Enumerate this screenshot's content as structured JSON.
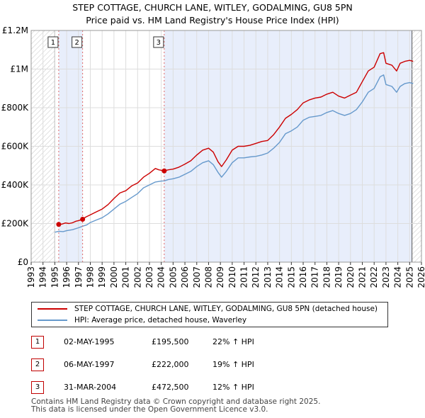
{
  "title_line1": "STEP COTTAGE, CHURCH LANE, WITLEY, GODALMING, GU8 5PN",
  "title_line2": "Price paid vs. HM Land Registry's House Price Index (HPI)",
  "chart_data": {
    "type": "line",
    "x_range": [
      1993,
      2026
    ],
    "ylim": [
      0,
      1200000
    ],
    "y_ticks": [
      {
        "value": 0,
        "label": "£0"
      },
      {
        "value": 200000,
        "label": "£200K"
      },
      {
        "value": 400000,
        "label": "£400K"
      },
      {
        "value": 600000,
        "label": "£600K"
      },
      {
        "value": 800000,
        "label": "£800K"
      },
      {
        "value": 1000000,
        "label": "£1M"
      },
      {
        "value": 1200000,
        "label": "£1.2M"
      }
    ],
    "x_ticks": [
      "1993",
      "1994",
      "1995",
      "1996",
      "1997",
      "1998",
      "1999",
      "2000",
      "2001",
      "2002",
      "2003",
      "2004",
      "2005",
      "2006",
      "2007",
      "2008",
      "2009",
      "2010",
      "2011",
      "2012",
      "2013",
      "2014",
      "2015",
      "2016",
      "2017",
      "2018",
      "2019",
      "2020",
      "2021",
      "2022",
      "2023",
      "2024",
      "2025",
      "2026"
    ],
    "hatch_before": 1995.0,
    "hatch_after": 2025.2,
    "series": [
      {
        "name": "STEP COTTAGE, CHURCH LANE, WITLEY, GODALMING, GU8 5PN (detached house)",
        "color": "#cc0000",
        "points": [
          [
            1995.33,
            195500
          ],
          [
            1995.6,
            197000
          ],
          [
            1995.9,
            203000
          ],
          [
            1996.2,
            200000
          ],
          [
            1996.5,
            204000
          ],
          [
            1996.8,
            212000
          ],
          [
            1997.0,
            215000
          ],
          [
            1997.35,
            222000
          ],
          [
            1997.6,
            233000
          ],
          [
            1998.0,
            245000
          ],
          [
            1998.5,
            260000
          ],
          [
            1999.0,
            275000
          ],
          [
            1999.5,
            298000
          ],
          [
            2000.0,
            330000
          ],
          [
            2000.5,
            358000
          ],
          [
            2001.0,
            370000
          ],
          [
            2001.5,
            395000
          ],
          [
            2002.0,
            410000
          ],
          [
            2002.5,
            440000
          ],
          [
            2003.0,
            460000
          ],
          [
            2003.5,
            485000
          ],
          [
            2003.8,
            478000
          ],
          [
            2004.25,
            472500
          ],
          [
            2004.6,
            478000
          ],
          [
            2005.0,
            482000
          ],
          [
            2005.5,
            492000
          ],
          [
            2006.0,
            508000
          ],
          [
            2006.5,
            525000
          ],
          [
            2007.0,
            555000
          ],
          [
            2007.5,
            580000
          ],
          [
            2008.0,
            590000
          ],
          [
            2008.4,
            570000
          ],
          [
            2008.8,
            520000
          ],
          [
            2009.1,
            495000
          ],
          [
            2009.5,
            530000
          ],
          [
            2010.0,
            580000
          ],
          [
            2010.5,
            600000
          ],
          [
            2011.0,
            600000
          ],
          [
            2011.5,
            605000
          ],
          [
            2012.0,
            615000
          ],
          [
            2012.5,
            625000
          ],
          [
            2013.0,
            630000
          ],
          [
            2013.5,
            660000
          ],
          [
            2014.0,
            700000
          ],
          [
            2014.5,
            745000
          ],
          [
            2015.0,
            765000
          ],
          [
            2015.5,
            790000
          ],
          [
            2016.0,
            825000
          ],
          [
            2016.5,
            840000
          ],
          [
            2017.0,
            850000
          ],
          [
            2017.5,
            855000
          ],
          [
            2018.0,
            870000
          ],
          [
            2018.5,
            880000
          ],
          [
            2019.0,
            860000
          ],
          [
            2019.5,
            850000
          ],
          [
            2020.0,
            865000
          ],
          [
            2020.5,
            880000
          ],
          [
            2021.0,
            935000
          ],
          [
            2021.5,
            990000
          ],
          [
            2022.0,
            1010000
          ],
          [
            2022.5,
            1080000
          ],
          [
            2022.8,
            1085000
          ],
          [
            2023.0,
            1030000
          ],
          [
            2023.5,
            1020000
          ],
          [
            2023.9,
            990000
          ],
          [
            2024.2,
            1030000
          ],
          [
            2024.6,
            1040000
          ],
          [
            2025.0,
            1045000
          ],
          [
            2025.3,
            1040000
          ]
        ]
      },
      {
        "name": "HPI: Average price, detached house, Waverley",
        "color": "#6699cc",
        "points": [
          [
            1995.0,
            155000
          ],
          [
            1995.33,
            160000
          ],
          [
            1995.7,
            158000
          ],
          [
            1996.0,
            163000
          ],
          [
            1996.5,
            168000
          ],
          [
            1997.0,
            178000
          ],
          [
            1997.35,
            186000
          ],
          [
            1997.7,
            193000
          ],
          [
            1998.0,
            205000
          ],
          [
            1998.5,
            218000
          ],
          [
            1999.0,
            230000
          ],
          [
            1999.5,
            250000
          ],
          [
            2000.0,
            275000
          ],
          [
            2000.5,
            300000
          ],
          [
            2001.0,
            315000
          ],
          [
            2001.5,
            335000
          ],
          [
            2002.0,
            355000
          ],
          [
            2002.5,
            385000
          ],
          [
            2003.0,
            400000
          ],
          [
            2003.5,
            415000
          ],
          [
            2004.0,
            420000
          ],
          [
            2004.25,
            421000
          ],
          [
            2004.6,
            428000
          ],
          [
            2005.0,
            432000
          ],
          [
            2005.5,
            440000
          ],
          [
            2006.0,
            455000
          ],
          [
            2006.5,
            470000
          ],
          [
            2007.0,
            495000
          ],
          [
            2007.5,
            515000
          ],
          [
            2008.0,
            525000
          ],
          [
            2008.4,
            505000
          ],
          [
            2008.8,
            465000
          ],
          [
            2009.1,
            440000
          ],
          [
            2009.5,
            470000
          ],
          [
            2010.0,
            515000
          ],
          [
            2010.5,
            540000
          ],
          [
            2011.0,
            540000
          ],
          [
            2011.5,
            545000
          ],
          [
            2012.0,
            548000
          ],
          [
            2012.5,
            555000
          ],
          [
            2013.0,
            565000
          ],
          [
            2013.5,
            590000
          ],
          [
            2014.0,
            620000
          ],
          [
            2014.5,
            665000
          ],
          [
            2015.0,
            680000
          ],
          [
            2015.5,
            700000
          ],
          [
            2016.0,
            735000
          ],
          [
            2016.5,
            750000
          ],
          [
            2017.0,
            755000
          ],
          [
            2017.5,
            760000
          ],
          [
            2018.0,
            775000
          ],
          [
            2018.5,
            785000
          ],
          [
            2019.0,
            770000
          ],
          [
            2019.5,
            760000
          ],
          [
            2020.0,
            770000
          ],
          [
            2020.5,
            790000
          ],
          [
            2021.0,
            830000
          ],
          [
            2021.5,
            880000
          ],
          [
            2022.0,
            900000
          ],
          [
            2022.5,
            960000
          ],
          [
            2022.8,
            970000
          ],
          [
            2023.0,
            920000
          ],
          [
            2023.5,
            910000
          ],
          [
            2023.9,
            880000
          ],
          [
            2024.2,
            910000
          ],
          [
            2024.6,
            925000
          ],
          [
            2025.0,
            930000
          ],
          [
            2025.3,
            925000
          ]
        ]
      }
    ],
    "sales": [
      {
        "num": "1",
        "x": 1995.33,
        "price": 195500
      },
      {
        "num": "2",
        "x": 1997.35,
        "price": 222000
      },
      {
        "num": "3",
        "x": 2004.25,
        "price": 472500
      }
    ]
  },
  "legend": {
    "property_label": "STEP COTTAGE, CHURCH LANE, WITLEY, GODALMING, GU8 5PN (detached house)",
    "hpi_label": "HPI: Average price, detached house, Waverley",
    "property_color": "#cc0000",
    "hpi_color": "#6699cc"
  },
  "transactions": [
    {
      "num": "1",
      "date": "02-MAY-1995",
      "price": "£195,500",
      "hpi": "22% ↑ HPI"
    },
    {
      "num": "2",
      "date": "06-MAY-1997",
      "price": "£222,000",
      "hpi": "19% ↑ HPI"
    },
    {
      "num": "3",
      "date": "31-MAR-2004",
      "price": "£472,500",
      "hpi": "12% ↑ HPI"
    }
  ],
  "footer_line1": "Contains HM Land Registry data © Crown copyright and database right 2025.",
  "footer_line2": "This data is licensed under the Open Government Licence v3.0."
}
